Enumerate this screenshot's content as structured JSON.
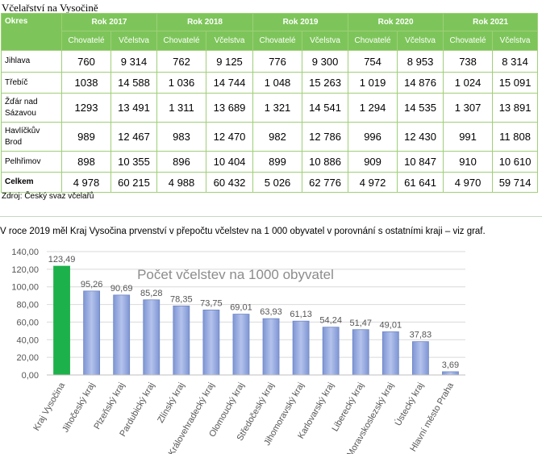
{
  "document": {
    "title": "Včelařství na Vysočině",
    "source": "Zdroj: Český svaz včelařů",
    "sentence": "V roce 2019 měl Kraj Vysočina prvenství v přepočtu včelstev na 1 000 obyvatel v porovnání s ostatními kraji – viz graf."
  },
  "table": {
    "okres_header": "Okres",
    "years": [
      "Rok 2017",
      "Rok 2018",
      "Rok 2019",
      "Rok 2020",
      "Rok 2021"
    ],
    "sub_headers": [
      "Chovatelé",
      "Včelstva"
    ],
    "rows": [
      {
        "name": "Jihlava",
        "values": [
          "760",
          "9 314",
          "762",
          "9 125",
          "776",
          "9 300",
          "754",
          "8 953",
          "738",
          "8 314"
        ]
      },
      {
        "name": "Třebíč",
        "values": [
          "1038",
          "14 588",
          "1 036",
          "14 744",
          "1 048",
          "15 263",
          "1 019",
          "14 876",
          "1 024",
          "15 091"
        ]
      },
      {
        "name": "Žďár nad Sázavou",
        "values": [
          "1293",
          "13 491",
          "1 311",
          "13 689",
          "1 321",
          "14 541",
          "1 294",
          "14 535",
          "1 307",
          "13 891"
        ]
      },
      {
        "name": "Havlíčkův Brod",
        "values": [
          "989",
          "12 467",
          "983",
          "12 470",
          "982",
          "12 786",
          "996",
          "12 430",
          "991",
          "11 808"
        ]
      },
      {
        "name": "Pelhřimov",
        "values": [
          "898",
          "10 355",
          "896",
          "10 404",
          "899",
          "10 886",
          "909",
          "10 847",
          "910",
          "10 610"
        ]
      },
      {
        "name": "Celkem",
        "values": [
          "4 978",
          "60 215",
          "4 988",
          "60 432",
          "5 026",
          "62 776",
          "4 972",
          "61 641",
          "4 970",
          "59 714"
        ]
      }
    ]
  },
  "chart_data": {
    "type": "bar",
    "title": "Počet včelstev na 1000 obyvatel",
    "categories": [
      "Kraj Vysočina",
      "Jihočeský kraj",
      "Plzeňský kraj",
      "Pardubický kraj",
      "Zlínský kraj",
      "Královehradecký kraj",
      "Olomoucký kraj",
      "Středočeský kraj",
      "Jihomoravský kraj",
      "Karlovarský kraj",
      "Liberecký kraj",
      "Moravskoslezský kraj",
      "Ústecký kraj",
      "Hlavní město Praha"
    ],
    "values": [
      123.49,
      95.26,
      90.69,
      85.28,
      78.35,
      73.75,
      69.01,
      63.93,
      61.13,
      54.24,
      51.47,
      49.01,
      37.83,
      3.69
    ],
    "value_labels": [
      "123,49",
      "95,26",
      "90,69",
      "85,28",
      "78,35",
      "73,75",
      "69,01",
      "63,93",
      "61,13",
      "54,24",
      "51,47",
      "49,01",
      "37,83",
      "3,69"
    ],
    "ylim": [
      0,
      140
    ],
    "yticks": [
      "0,00",
      "20,00",
      "40,00",
      "60,00",
      "80,00",
      "100,00",
      "120,00",
      "140,00"
    ],
    "grid": true,
    "colors": {
      "highlight": "#1db14b",
      "bar": "#8fa5dc",
      "bar_edge": "#6f86c4"
    }
  }
}
